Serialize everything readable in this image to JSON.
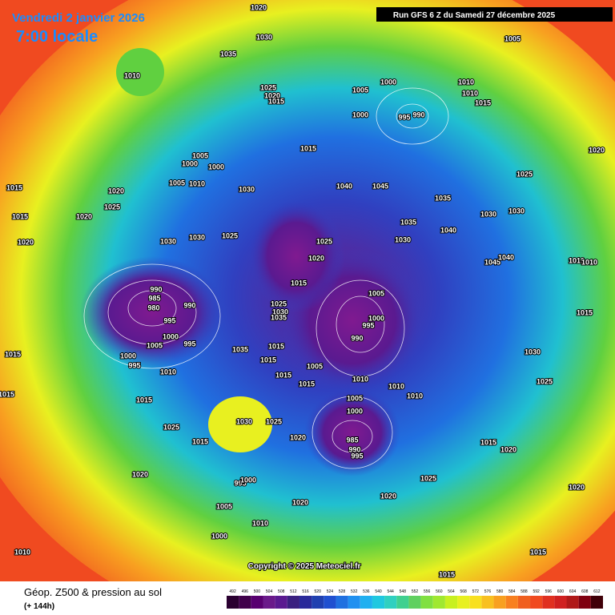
{
  "header": {
    "date": "Vendredi 2 janvier 2026",
    "time": "7:00 locale",
    "run": "Run GFS 6 Z du Samedi 27 décembre 2025"
  },
  "copyright": "Copyright © 2025 Meteociel.fr",
  "legend": {
    "title": "Géop. Z500 & pression au sol",
    "subtitle": "(+ 144h)",
    "scale": [
      "492",
      "496",
      "500",
      "504",
      "508",
      "512",
      "516",
      "520",
      "524",
      "528",
      "532",
      "536",
      "540",
      "544",
      "548",
      "552",
      "556",
      "560",
      "564",
      "568",
      "572",
      "576",
      "580",
      "584",
      "588",
      "592",
      "596",
      "600",
      "604",
      "608",
      "612"
    ]
  },
  "pressure_labels": [
    "1020",
    "1010",
    "1030",
    "1035",
    "1005",
    "1025",
    "1020",
    "1015",
    "1005",
    "1000",
    "1010",
    "1010",
    "1015",
    "1000",
    "995",
    "990",
    "1020",
    "1005",
    "1000",
    "1000",
    "1015",
    "1005",
    "1010",
    "1030",
    "1040",
    "1045",
    "1035",
    "1025",
    "1015",
    "1020",
    "1025",
    "1015",
    "1020",
    "1030",
    "1030",
    "1035",
    "1040",
    "1020",
    "1030",
    "1030",
    "1025",
    "1025",
    "1030",
    "1045",
    "1040",
    "1020",
    "1010",
    "1010",
    "1015",
    "990",
    "985",
    "980",
    "990",
    "995",
    "1005",
    "1025",
    "1030",
    "1035",
    "995",
    "1000",
    "1015",
    "1000",
    "995",
    "1005",
    "990",
    "1015",
    "1035",
    "1015",
    "1030",
    "1000",
    "995",
    "1010",
    "1015",
    "1005",
    "1015",
    "1010",
    "1010",
    "1010",
    "1025",
    "1015",
    "1015",
    "1015",
    "1005",
    "1000",
    "1030",
    "1025",
    "1025",
    "1020",
    "985",
    "990",
    "995",
    "1015",
    "1015",
    "1020",
    "1020",
    "1025",
    "995",
    "1000",
    "1020",
    "1020",
    "1005",
    "1020",
    "1010",
    "1000",
    "1010",
    "1015",
    "1015"
  ]
}
